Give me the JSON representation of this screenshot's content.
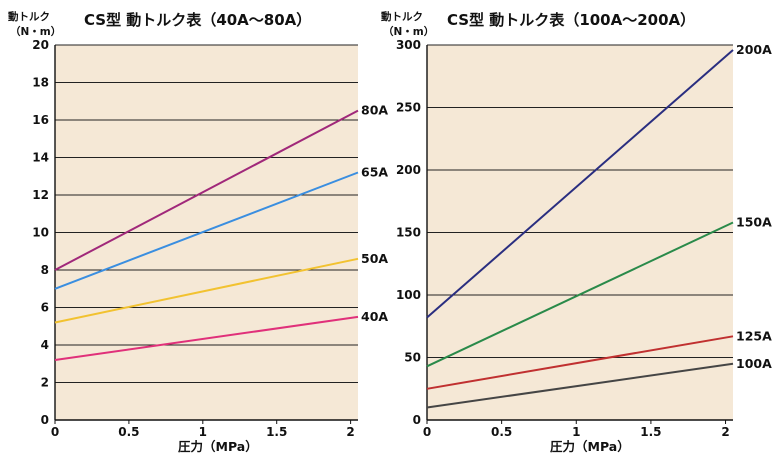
{
  "chart_data": [
    {
      "type": "line",
      "title": "CS型 動トルク表（40A〜80A）",
      "ylabel": "動トルク（N・m）",
      "ylabel_line1": "動トルク",
      "ylabel_line2": "（N・m）",
      "xlabel": "圧力（MPa）",
      "xlim": [
        0,
        2.05
      ],
      "ylim": [
        0,
        20
      ],
      "xticks": [
        0,
        0.5,
        1,
        1.5,
        2
      ],
      "xtick_labels": [
        "0",
        "0.5",
        "1",
        "1.5",
        "2"
      ],
      "yticks": [
        0,
        2,
        4,
        6,
        8,
        10,
        12,
        14,
        16,
        18,
        20
      ],
      "ytick_labels": [
        "0",
        "2",
        "4",
        "6",
        "8",
        "10",
        "12",
        "14",
        "16",
        "18",
        "20"
      ],
      "grid": "horizontal",
      "background": "#f5e8d6",
      "series": [
        {
          "name": "80A",
          "color": "#a0287a",
          "x": [
            0,
            2.05
          ],
          "y": [
            8.0,
            16.5
          ]
        },
        {
          "name": "65A",
          "color": "#3a8ee0",
          "x": [
            0,
            2.05
          ],
          "y": [
            7.0,
            13.2
          ]
        },
        {
          "name": "50A",
          "color": "#f2c230",
          "x": [
            0,
            2.05
          ],
          "y": [
            5.2,
            8.6
          ]
        },
        {
          "name": "40A",
          "color": "#e0307a",
          "x": [
            0,
            2.05
          ],
          "y": [
            3.2,
            5.5
          ]
        }
      ]
    },
    {
      "type": "line",
      "title": "CS型 動トルク表（100A〜200A）",
      "ylabel": "動トルク（N・m）",
      "ylabel_line1": "動トルク",
      "ylabel_line2": "（N・m）",
      "xlabel": "圧力（MPa）",
      "xlim": [
        0,
        2.05
      ],
      "ylim": [
        0,
        300
      ],
      "xticks": [
        0,
        0.5,
        1,
        1.5,
        2
      ],
      "xtick_labels": [
        "0",
        "0.5",
        "1",
        "1.5",
        "2"
      ],
      "yticks": [
        0,
        50,
        100,
        150,
        200,
        250,
        300
      ],
      "ytick_labels": [
        "0",
        "50",
        "100",
        "150",
        "200",
        "250",
        "300"
      ],
      "grid": "horizontal",
      "background": "#f5e8d6",
      "series": [
        {
          "name": "200A",
          "color": "#2a2e80",
          "x": [
            0,
            2.05
          ],
          "y": [
            82,
            296
          ]
        },
        {
          "name": "150A",
          "color": "#2a8a4a",
          "x": [
            0,
            2.05
          ],
          "y": [
            43,
            158
          ]
        },
        {
          "name": "125A",
          "color": "#c03030",
          "x": [
            0,
            2.05
          ],
          "y": [
            25,
            67
          ]
        },
        {
          "name": "100A",
          "color": "#454545",
          "x": [
            0,
            2.05
          ],
          "y": [
            10,
            45
          ]
        }
      ]
    }
  ]
}
